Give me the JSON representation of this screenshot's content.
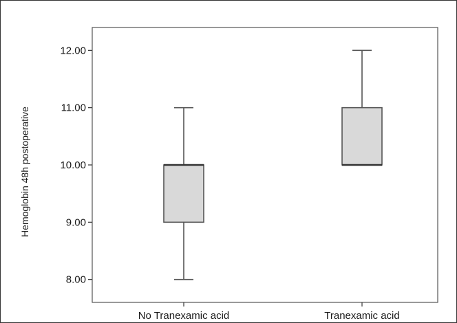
{
  "chart_data": {
    "type": "boxplot",
    "title": "",
    "xlabel": "",
    "ylabel": "Hemoglobin 48h postoperative",
    "ylim": [
      7.6,
      12.4
    ],
    "yticks": [
      "8.00",
      "9.00",
      "10.00",
      "11.00",
      "12.00"
    ],
    "ytick_values": [
      8,
      9,
      10,
      11,
      12
    ],
    "grid": false,
    "categories": [
      "No Tranexamic acid",
      "Tranexamic acid"
    ],
    "boxes": [
      {
        "category": "No Tranexamic acid",
        "min": 8.0,
        "q1": 9.0,
        "median": 10.0,
        "q3": 10.0,
        "max": 11.0
      },
      {
        "category": "Tranexamic acid",
        "min": 10.0,
        "q1": 10.0,
        "median": 10.0,
        "q3": 11.0,
        "max": 12.0
      }
    ],
    "colors": {
      "box_fill": "#d9d9d9",
      "line": "#555555",
      "frame": "#333333"
    }
  }
}
